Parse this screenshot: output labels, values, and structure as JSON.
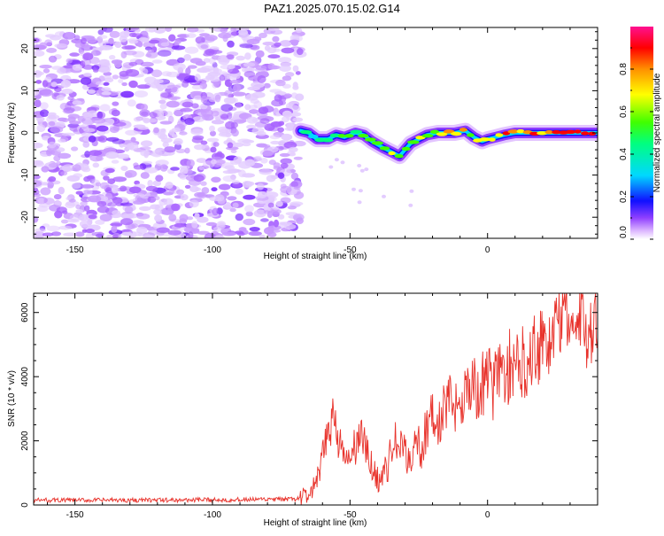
{
  "title": "PAZ1.2025.070.15.02.G14",
  "colorbar": {
    "label": "Normalized spectral amplitude",
    "ticks": [
      "0.0",
      "0.2",
      "0.4",
      "0.6",
      "0.8"
    ],
    "tick_values": [
      0.0,
      0.2,
      0.4,
      0.6,
      0.8
    ],
    "range": [
      0,
      1
    ]
  },
  "chart_data": [
    {
      "type": "heatmap",
      "xlabel": "Height of straight line (km)",
      "ylabel": "Frequency (Hz)",
      "xlim": [
        -165,
        40
      ],
      "ylim": [
        -25,
        25
      ],
      "xticks": [
        -150,
        -100,
        -50,
        0
      ],
      "yticks": [
        -20,
        -10,
        0,
        10,
        20
      ],
      "colormap": "rainbow (white-violet-blue-cyan-green-yellow-red-pink)",
      "noise_region_x": [
        -165,
        -68
      ],
      "signal_track": {
        "x": [
          -68,
          -65,
          -62,
          -58,
          -55,
          -52,
          -48,
          -45,
          -42,
          -38,
          -35,
          -32,
          -30,
          -28,
          -25,
          -22,
          -18,
          -15,
          -12,
          -8,
          -5,
          -2,
          0,
          3,
          6,
          10,
          15,
          20,
          25,
          30,
          35,
          40
        ],
        "y": [
          0.5,
          0,
          -1.5,
          -1.5,
          -0.5,
          -1,
          0,
          -0.5,
          -2,
          -3.5,
          -4.5,
          -5.5,
          -4,
          -2.5,
          -1.5,
          -0.5,
          0,
          0,
          0,
          0.5,
          -1,
          -2,
          -1.5,
          -1,
          -0.5,
          0,
          0,
          0,
          0,
          0,
          0,
          0
        ]
      }
    },
    {
      "type": "line",
      "xlabel": "Height of straight line (km)",
      "ylabel": "SNR (10 * v/v)",
      "xlim": [
        -165,
        40
      ],
      "ylim": [
        0,
        6600
      ],
      "xticks": [
        -150,
        -100,
        -50,
        0
      ],
      "yticks": [
        0,
        2000,
        4000,
        6000
      ],
      "color": "#e8322b",
      "series": [
        {
          "x": [
            -165,
            -150,
            -120,
            -100,
            -80,
            -70,
            -65,
            -62,
            -60,
            -58,
            -56,
            -54,
            -52,
            -50,
            -48,
            -46,
            -44,
            -42,
            -40,
            -38,
            -36,
            -34,
            -32,
            -30,
            -28,
            -26,
            -24,
            -22,
            -20,
            -18,
            -16,
            -14,
            -12,
            -10,
            -8,
            -6,
            -4,
            -2,
            0,
            2,
            4,
            6,
            8,
            10,
            12,
            14,
            16,
            18,
            20,
            22,
            24,
            26,
            28,
            30,
            32,
            34,
            36,
            38,
            40
          ],
          "y": [
            150,
            150,
            150,
            160,
            170,
            180,
            300,
            700,
            1400,
            2300,
            2900,
            2000,
            1300,
            1500,
            1800,
            2300,
            1600,
            1200,
            800,
            900,
            1300,
            2000,
            1800,
            1600,
            1300,
            2300,
            1500,
            2600,
            2700,
            2400,
            3000,
            3200,
            3000,
            3400,
            3600,
            3800,
            3500,
            3700,
            4000,
            3700,
            4100,
            4200,
            4300,
            4100,
            4400,
            4600,
            4800,
            5000,
            5200,
            5000,
            5400,
            5700,
            6500,
            5600,
            5400,
            5700,
            5500,
            5600,
            5550
          ]
        }
      ]
    }
  ]
}
